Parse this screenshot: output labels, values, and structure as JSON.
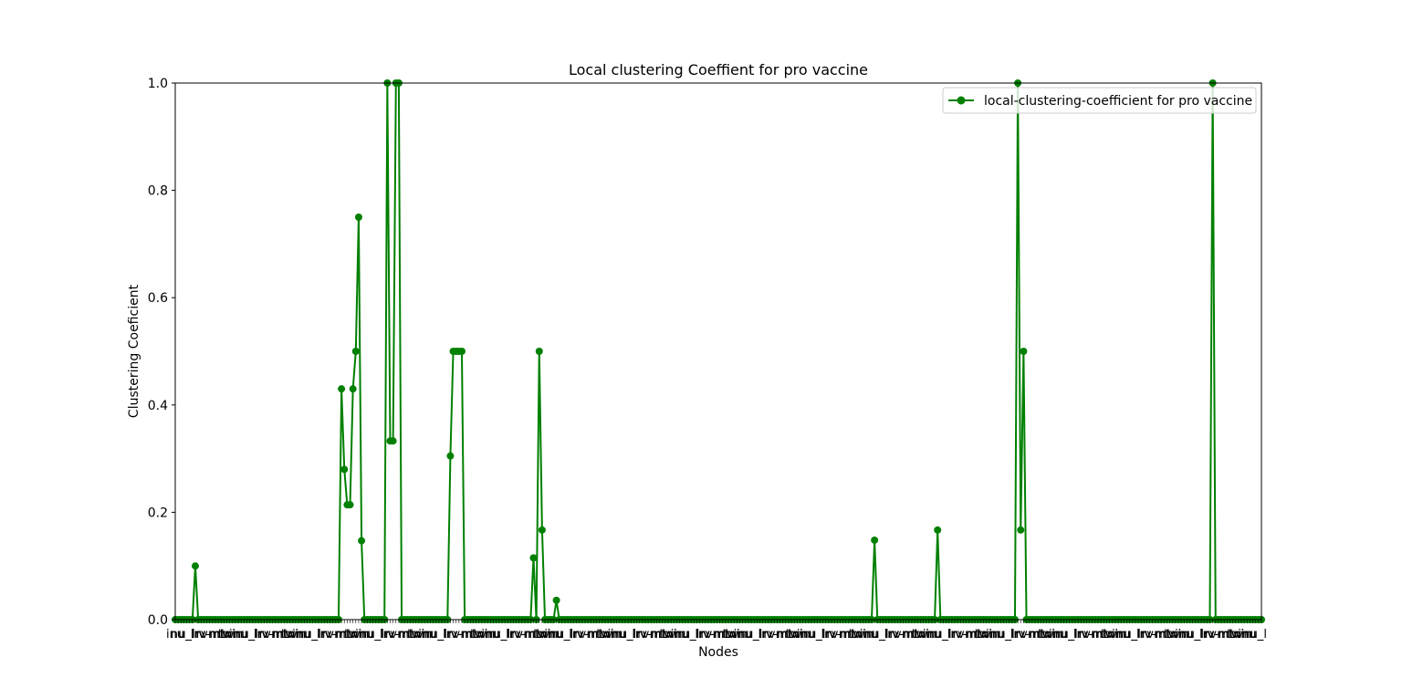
{
  "chart_data": {
    "type": "line",
    "title": "Local clustering Coeffient for pro vaccine",
    "xlabel": "Nodes",
    "ylabel": "Clustering Coeficient",
    "ylim": [
      0,
      1
    ],
    "yticks": [
      "0.0",
      "0.2",
      "0.4",
      "0.6",
      "0.8",
      "1.0"
    ],
    "legend": {
      "placement": "upper-right",
      "entries": [
        "local-clustering-coefficient for pro vaccine"
      ]
    },
    "grid": false,
    "color": "#008000",
    "marker": "circle",
    "n_points": 380,
    "x_tick_labels": "dense, overlapping node-name labels (illegible)",
    "series": [
      {
        "name": "local-clustering-coefficient for pro vaccine",
        "nonzero_points": [
          {
            "i": 7,
            "y": 0.1
          },
          {
            "i": 58,
            "y": 0.43
          },
          {
            "i": 59,
            "y": 0.28
          },
          {
            "i": 60,
            "y": 0.214
          },
          {
            "i": 61,
            "y": 0.214
          },
          {
            "i": 62,
            "y": 0.43
          },
          {
            "i": 63,
            "y": 0.5
          },
          {
            "i": 64,
            "y": 0.75
          },
          {
            "i": 65,
            "y": 0.147
          },
          {
            "i": 74,
            "y": 1.0
          },
          {
            "i": 75,
            "y": 0.333
          },
          {
            "i": 76,
            "y": 0.333
          },
          {
            "i": 77,
            "y": 1.0
          },
          {
            "i": 78,
            "y": 1.0
          },
          {
            "i": 96,
            "y": 0.305
          },
          {
            "i": 97,
            "y": 0.5
          },
          {
            "i": 98,
            "y": 0.5
          },
          {
            "i": 99,
            "y": 0.5
          },
          {
            "i": 100,
            "y": 0.5
          },
          {
            "i": 125,
            "y": 0.115
          },
          {
            "i": 127,
            "y": 0.5
          },
          {
            "i": 128,
            "y": 0.167
          },
          {
            "i": 133,
            "y": 0.036
          },
          {
            "i": 244,
            "y": 0.148
          },
          {
            "i": 266,
            "y": 0.167
          },
          {
            "i": 294,
            "y": 1.0
          },
          {
            "i": 295,
            "y": 0.167
          },
          {
            "i": 296,
            "y": 0.5
          },
          {
            "i": 362,
            "y": 1.0
          }
        ],
        "default_value": 0.0
      }
    ]
  }
}
